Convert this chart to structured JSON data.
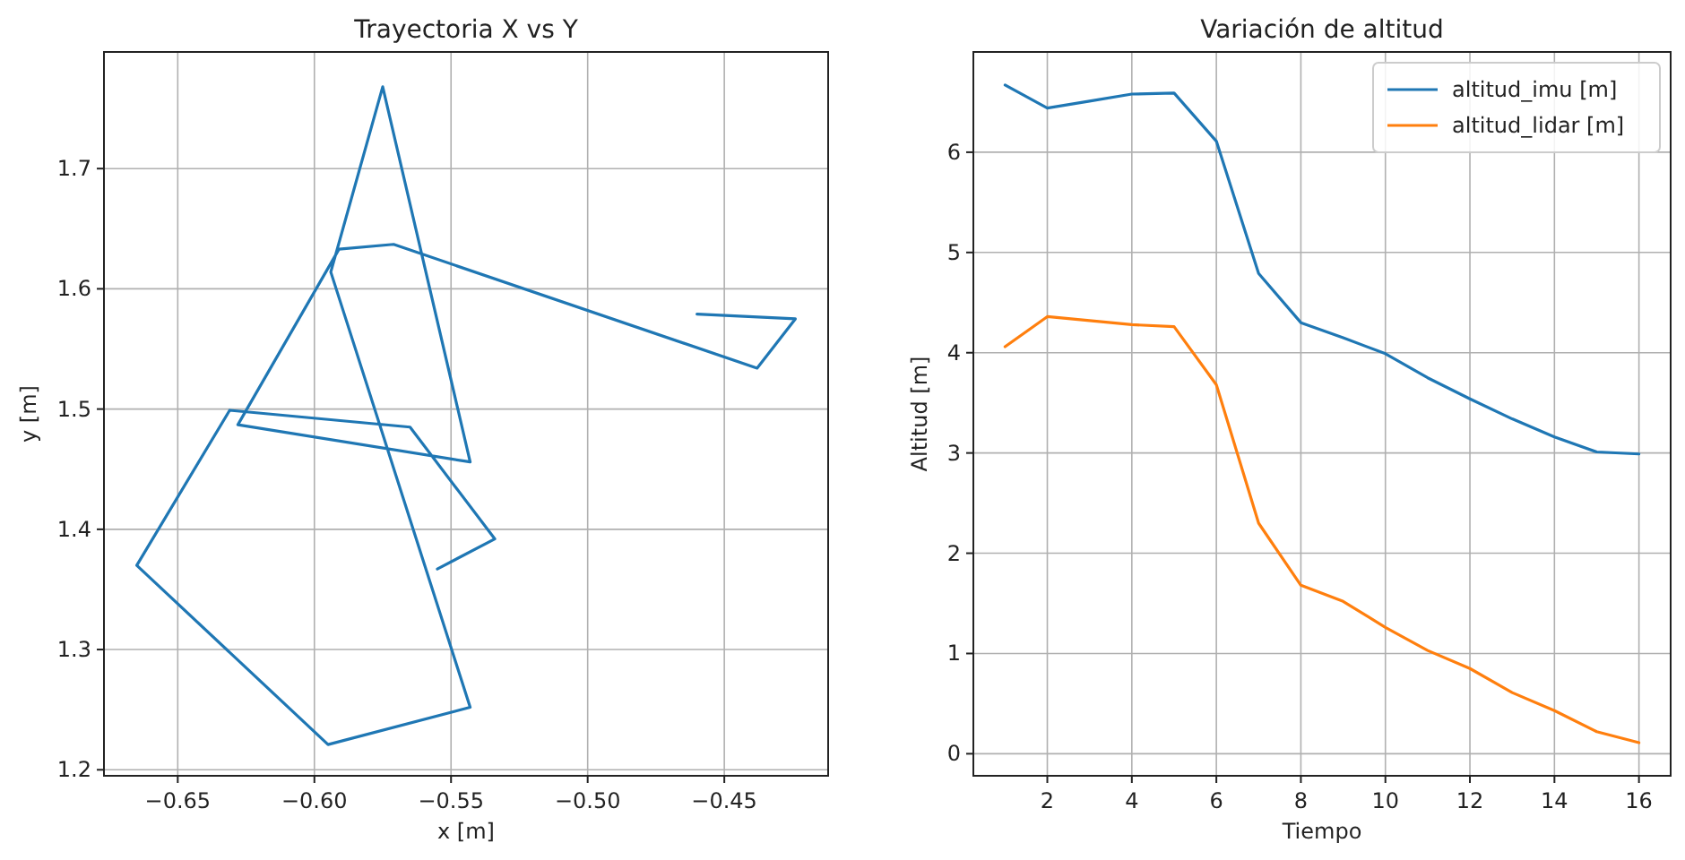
{
  "chart_data": [
    {
      "type": "line",
      "title": "Trayectoria X vs Y",
      "xlabel": "x [m]",
      "ylabel": "y [m]",
      "grid": true,
      "legend": false,
      "series": [
        {
          "color": "#1f77b4",
          "x": [
            -0.46,
            -0.424,
            -0.438,
            -0.571,
            -0.591,
            -0.628,
            -0.543,
            -0.575,
            -0.594,
            -0.543,
            -0.595,
            -0.665,
            -0.631,
            -0.565,
            -0.534,
            -0.555
          ],
          "values": [
            1.579,
            1.575,
            1.534,
            1.637,
            1.633,
            1.487,
            1.456,
            1.768,
            1.614,
            1.252,
            1.221,
            1.37,
            1.499,
            1.485,
            1.392,
            1.367
          ]
        }
      ],
      "xlim": [
        -0.677,
        -0.412
      ],
      "xticks": [
        {
          "value": -0.65,
          "label": "−0.65"
        },
        {
          "value": -0.6,
          "label": "−0.60"
        },
        {
          "value": -0.55,
          "label": "−0.55"
        },
        {
          "value": -0.5,
          "label": "−0.50"
        },
        {
          "value": -0.45,
          "label": "−0.45"
        }
      ],
      "ylim": [
        1.195,
        1.797
      ],
      "yticks": [
        1.2,
        1.3,
        1.4,
        1.5,
        1.6,
        1.7
      ]
    },
    {
      "type": "line",
      "title": "Variación de altitud",
      "xlabel": "Tiempo",
      "ylabel": "Altitud [m]",
      "grid": true,
      "legend": "top right",
      "x": [
        1,
        2,
        3,
        4,
        5,
        6,
        7,
        8,
        9,
        10,
        11,
        12,
        13,
        14,
        15,
        16
      ],
      "series": [
        {
          "name": "altitud_imu [m]",
          "color": "#1f77b4",
          "values": [
            6.67,
            6.44,
            6.51,
            6.58,
            6.59,
            6.11,
            4.79,
            4.3,
            4.15,
            3.99,
            3.75,
            3.54,
            3.34,
            3.16,
            3.01,
            2.99
          ]
        },
        {
          "name": "altitud_lidar [m]",
          "color": "#ff7f0e",
          "values": [
            4.06,
            4.36,
            4.32,
            4.28,
            4.26,
            3.68,
            2.3,
            1.68,
            1.52,
            1.26,
            1.03,
            0.85,
            0.61,
            0.43,
            0.22,
            0.11
          ]
        }
      ],
      "xlim": [
        0.25,
        16.75
      ],
      "xticks": [
        2,
        4,
        6,
        8,
        10,
        12,
        14,
        16
      ],
      "ylim": [
        -0.22,
        7.0
      ],
      "yticks": [
        0,
        1,
        2,
        3,
        4,
        5,
        6
      ]
    }
  ]
}
